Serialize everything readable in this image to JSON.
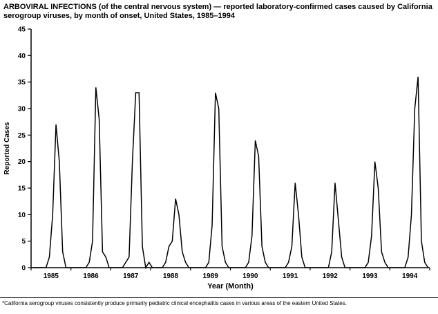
{
  "page": {
    "title": "ARBOVIRAL INFECTIONS (of the central nervous system) — reported laboratory-confirmed cases caused by California serogroup viruses, by month of onset, United States, 1985–1994",
    "footnote": "*California serogroup viruses consistently produce primarily pediatric clinical encephalitis cases in various areas of the eastern United States."
  },
  "chart_data": {
    "type": "line",
    "title": "ARBOVIRAL INFECTIONS (of the central nervous system) — reported laboratory-confirmed cases caused by California serogroup viruses, by month of onset, United States, 1985–1994",
    "xlabel": "Year (Month)",
    "ylabel": "Reported Cases",
    "ylim": [
      0,
      45
    ],
    "yticks": [
      0,
      5,
      10,
      15,
      20,
      25,
      30,
      35,
      40,
      45
    ],
    "grid": false,
    "legend": "none",
    "line_color": "#000000",
    "x_unit": "month",
    "categories_years": [
      "1985",
      "1986",
      "1987",
      "1988",
      "1989",
      "1990",
      "1991",
      "1992",
      "1993",
      "1994"
    ],
    "annual_peaks": {
      "1985": 27,
      "1986": 34,
      "1987": 33,
      "1988": 13,
      "1989": 33,
      "1990": 24,
      "1991": 16,
      "1992": 16,
      "1993": 20,
      "1994": 36
    },
    "series": [
      {
        "name": "Reported laboratory-confirmed cases",
        "values_by_year": {
          "1985": [
            0,
            0,
            0,
            0,
            0,
            2,
            10,
            27,
            20,
            3,
            0,
            0
          ],
          "1986": [
            0,
            0,
            0,
            0,
            0,
            1,
            5,
            34,
            28,
            3,
            2,
            0
          ],
          "1987": [
            0,
            0,
            0,
            0,
            1,
            2,
            20,
            33,
            33,
            4,
            0,
            1
          ],
          "1988": [
            0,
            0,
            0,
            0,
            1,
            4,
            5,
            13,
            10,
            3,
            1,
            0
          ],
          "1989": [
            0,
            0,
            0,
            0,
            0,
            1,
            8,
            33,
            30,
            4,
            1,
            0
          ],
          "1990": [
            0,
            0,
            0,
            0,
            0,
            1,
            6,
            24,
            21,
            4,
            1,
            0
          ],
          "1991": [
            0,
            0,
            0,
            0,
            0,
            1,
            4,
            16,
            10,
            2,
            0,
            0
          ],
          "1992": [
            0,
            0,
            0,
            0,
            0,
            0,
            3,
            16,
            9,
            2,
            0,
            0
          ],
          "1993": [
            0,
            0,
            0,
            0,
            0,
            1,
            6,
            20,
            15,
            3,
            1,
            0
          ],
          "1994": [
            0,
            0,
            0,
            0,
            0,
            2,
            10,
            30,
            36,
            5,
            1,
            0
          ]
        }
      }
    ]
  }
}
